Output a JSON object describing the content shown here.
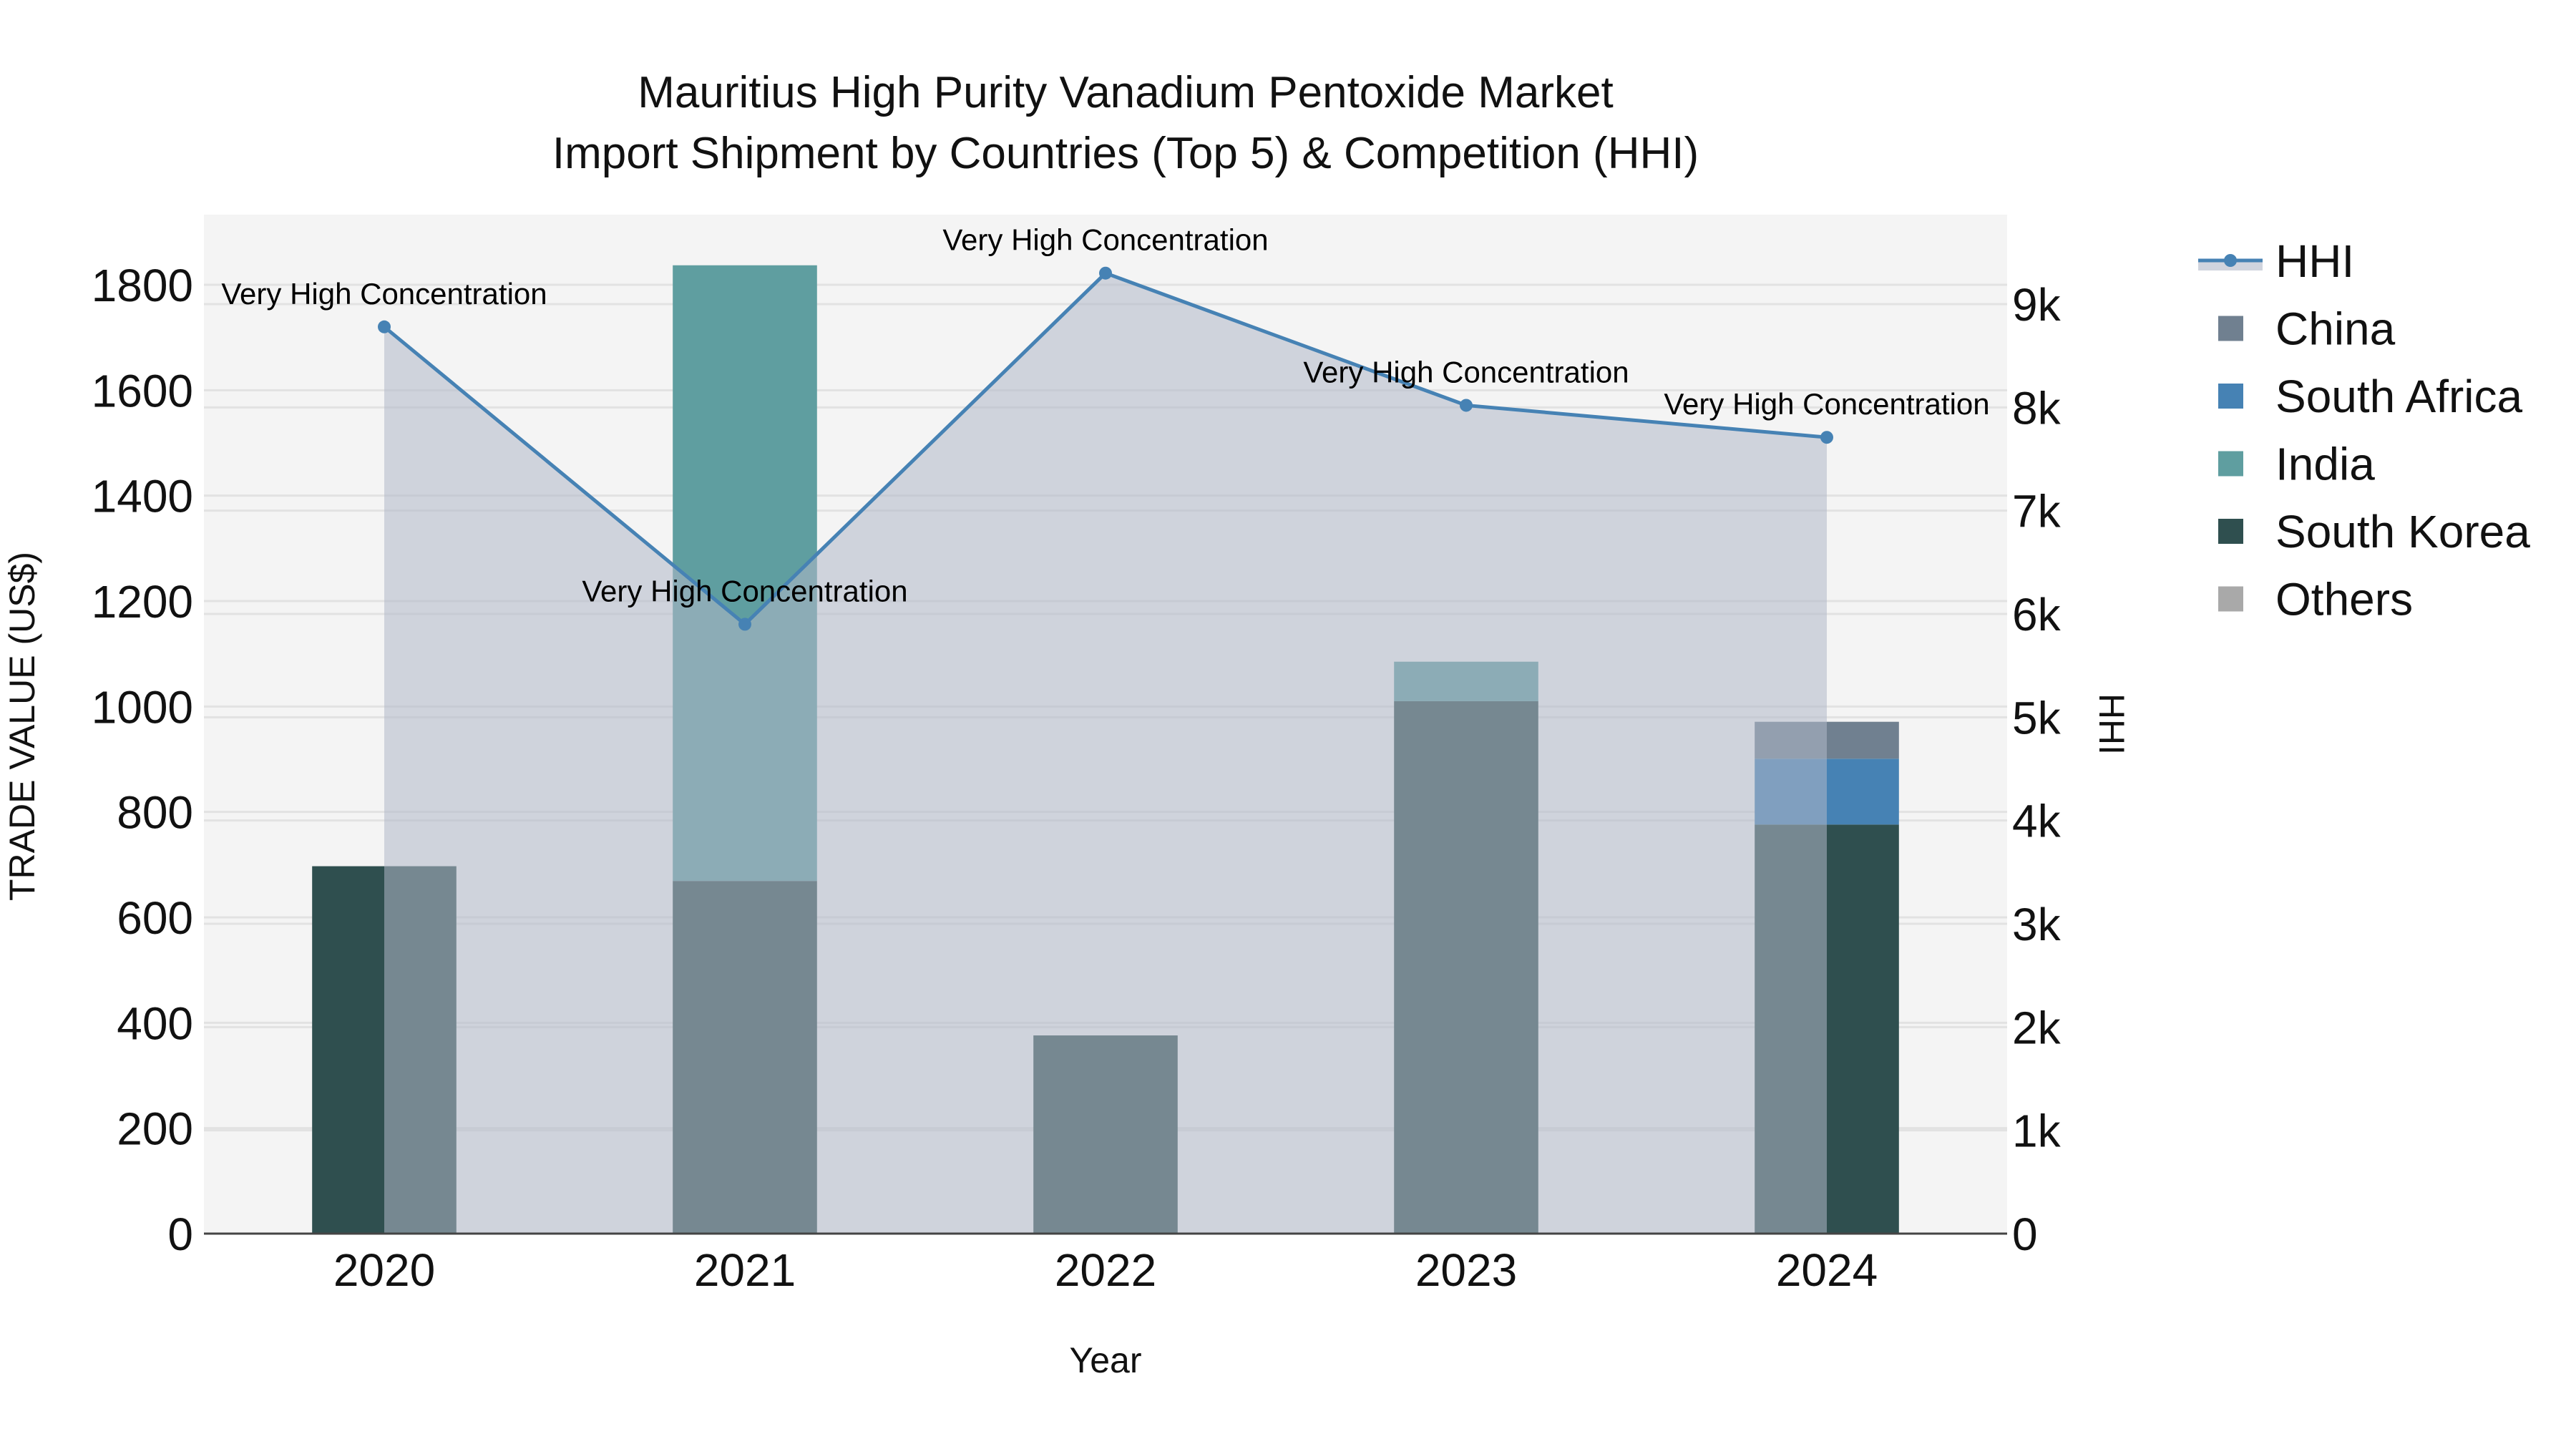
{
  "title": {
    "line1": "Mauritius High Purity Vanadium Pentoxide Market",
    "line2": "Import Shipment by Countries (Top 5) & Competition (HHI)"
  },
  "axes": {
    "x_title": "Year",
    "y_left_title": "TRADE VALUE (US$)",
    "y_right_title": "HHI",
    "y_left_ticks": [
      "0",
      "200",
      "400",
      "600",
      "800",
      "1000",
      "1200",
      "1400",
      "1600",
      "1800"
    ],
    "y_right_ticks": [
      "0",
      "1k",
      "2k",
      "3k",
      "4k",
      "5k",
      "6k",
      "7k",
      "8k",
      "9k"
    ]
  },
  "legend": {
    "items": [
      {
        "label": "HHI",
        "type": "line",
        "color": "#4682b4"
      },
      {
        "label": "China",
        "type": "box",
        "color": "#708090"
      },
      {
        "label": "South Africa",
        "type": "box",
        "color": "#4682b4"
      },
      {
        "label": "India",
        "type": "box",
        "color": "#5f9ea0"
      },
      {
        "label": "South Korea",
        "type": "box",
        "color": "#2f4f4f"
      },
      {
        "label": "Others",
        "type": "box",
        "color": "#a9a9a9"
      }
    ]
  },
  "colors": {
    "plot_bg": "#f4f4f4",
    "grid": "#e2e2e2",
    "hhi_line": "#4682b4",
    "hhi_fill": "rgba(176,184,200,0.55)",
    "axis_line": "#444444"
  },
  "chart_data": {
    "type": "bar",
    "title": "Mauritius High Purity Vanadium Pentoxide Market Import Shipment by Countries (Top 5) & Competition (HHI)",
    "xlabel": "Year",
    "ylabel": "TRADE VALUE (US$)",
    "y2label": "HHI",
    "categories": [
      "2020",
      "2021",
      "2022",
      "2023",
      "2024"
    ],
    "barmode": "stack",
    "ylim": [
      0,
      1930
    ],
    "y2lim": [
      0,
      9650
    ],
    "grid": true,
    "legend_position": "right",
    "series": [
      {
        "name": "South Korea",
        "type": "bar",
        "color": "#2f4f4f",
        "values": [
          697,
          669,
          376,
          1010,
          776
        ]
      },
      {
        "name": "India",
        "type": "bar",
        "color": "#5f9ea0",
        "values": [
          0,
          1168,
          0,
          75,
          0
        ]
      },
      {
        "name": "South Africa",
        "type": "bar",
        "color": "#4682b4",
        "values": [
          0,
          0,
          0,
          0,
          125
        ]
      },
      {
        "name": "China",
        "type": "bar",
        "color": "#708090",
        "values": [
          0,
          0,
          0,
          0,
          70
        ]
      },
      {
        "name": "Others",
        "type": "bar",
        "color": "#a9a9a9",
        "values": [
          0,
          0,
          0,
          0,
          0
        ]
      },
      {
        "name": "HHI",
        "type": "area-line",
        "axis": "right",
        "color": "#4682b4",
        "values": [
          8780,
          5900,
          9300,
          8020,
          7710
        ]
      }
    ],
    "annotations": [
      {
        "x": "2020",
        "text": "Very High Concentration"
      },
      {
        "x": "2021",
        "text": "Very High Concentration"
      },
      {
        "x": "2022",
        "text": "Very High Concentration"
      },
      {
        "x": "2023",
        "text": "Very High Concentration"
      },
      {
        "x": "2024",
        "text": "Very High Concentration"
      }
    ]
  }
}
